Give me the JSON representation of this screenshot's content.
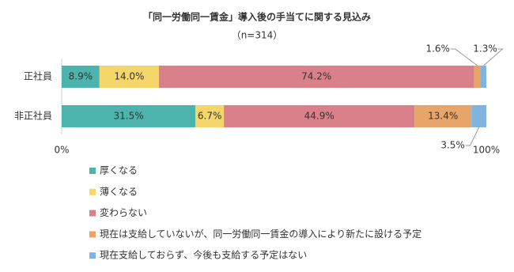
{
  "chart_data": {
    "type": "stacked-bar-horizontal",
    "title": "「同一労働同一賃金」導入後の手当てに関する見込み",
    "subtitle": "（n=314）",
    "categories": [
      "正社員",
      "非正社員"
    ],
    "series": [
      {
        "name": "厚くなる",
        "color": "#4db3ad",
        "values": [
          8.9,
          31.5
        ],
        "value_labels": [
          "8.9%",
          "31.5%"
        ]
      },
      {
        "name": "薄くなる",
        "color": "#f5d66b",
        "values": [
          14.0,
          6.7
        ],
        "value_labels": [
          "14.0%",
          "6.7%"
        ]
      },
      {
        "name": "変わらない",
        "color": "#d9808a",
        "values": [
          74.2,
          44.9
        ],
        "value_labels": [
          "74.2%",
          "44.9%"
        ]
      },
      {
        "name": "現在は支給していないが、同一労働同一賃金の導入により新たに設ける予定",
        "color": "#e8a56a",
        "values": [
          1.6,
          13.4
        ],
        "value_labels": [
          "1.6%",
          "13.4%"
        ]
      },
      {
        "name": "現在支給しておらず、今後も支給する予定はない",
        "color": "#7fb3e0",
        "values": [
          1.3,
          3.5
        ],
        "value_labels": [
          "1.3%",
          "3.5%"
        ]
      }
    ],
    "xlim": [
      0,
      100
    ],
    "xticks": [
      {
        "value": 0,
        "label": "0%"
      },
      {
        "value": 100,
        "label": "100%"
      }
    ]
  }
}
